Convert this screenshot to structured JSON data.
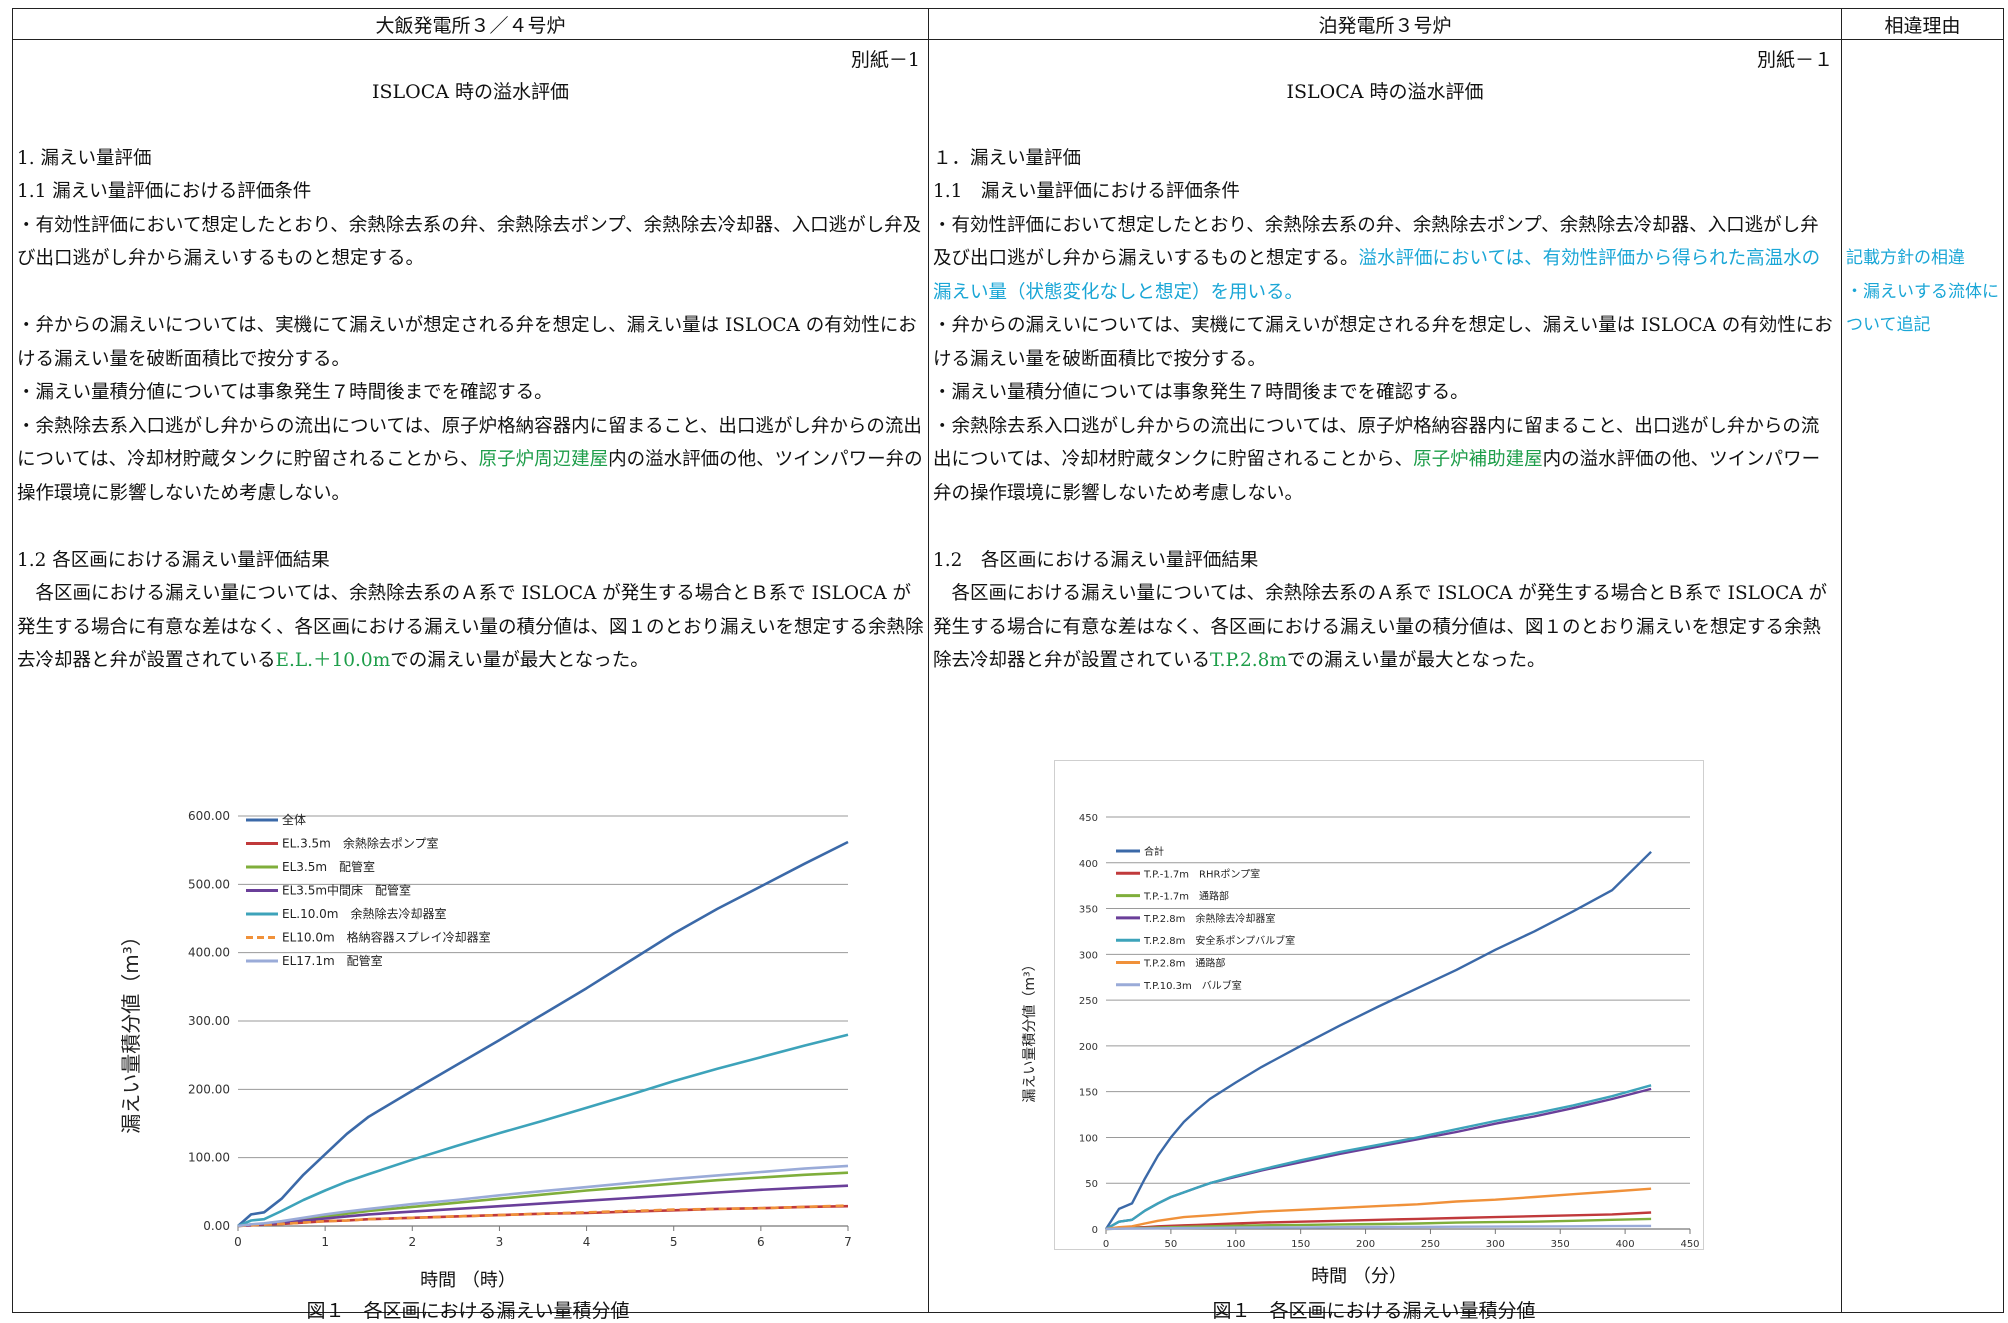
{
  "table": {
    "col_left": "大飯発電所３／４号炉",
    "col_right": "泊発電所３号炉",
    "col_reason": "相違理由"
  },
  "left": {
    "annex": "別紙－1",
    "title": "ISLOCA 時の溢水評価",
    "h1": "1. 漏えい量評価",
    "h11": "1.1 漏えい量評価における評価条件",
    "p1": "・有効性評価において想定したとおり、余熱除去系の弁、余熱除去ポンプ、余熱除去冷却器、入口逃がし弁及び出口逃がし弁から漏えいするものと想定する。",
    "p2": "・弁からの漏えいについては、実機にて漏えいが想定される弁を想定し、漏えい量は ISLOCA の有効性における漏えい量を破断面積比で按分する。",
    "p3": "・漏えい量積分値については事象発生７時間後までを確認する。",
    "p4_a": "・余熱除去系入口逃がし弁からの流出については、原子炉格納容器内に留まること、出口逃がし弁からの流出については、冷却材貯蔵タンクに貯留されることから、",
    "p4_green": "原子炉周辺建屋",
    "p4_b": "内の溢水評価の他、ツインパワー弁の操作環境に影響しないため考慮しない。",
    "h12": "1.2 各区画における漏えい量評価結果",
    "p5_a": "　各区画における漏えい量については、余熱除去系のＡ系で ISLOCA が発生する場合とＢ系で ISLOCA が発生する場合に有意な差はなく、各区画における漏えい量の積分値は、図１のとおり漏えいを想定する余熱除去冷却器と弁が設置されている",
    "p5_green": "E.L.＋10.0m",
    "p5_b": "での漏えい量が最大となった。",
    "fig_xlabel": "時間 （時）",
    "fig_caption": "図１　各区画における漏えい量積分値"
  },
  "right": {
    "annex": "別紙－１",
    "title": "ISLOCA 時の溢水評価",
    "h1": "１．漏えい量評価",
    "h11": "1.1　漏えい量評価における評価条件",
    "p1_a": "・有効性評価において想定したとおり、余熱除去系の弁、余熱除去ポンプ、余熱除去冷却器、入口逃がし弁及び出口逃がし弁から漏えいするものと想定する。",
    "p1_cyan": "溢水評価においては、有効性評価から得られた高温水の漏えい量（状態変化なしと想定）を用いる。",
    "p2": "・弁からの漏えいについては、実機にて漏えいが想定される弁を想定し、漏えい量は ISLOCA の有効性における漏えい量を破断面積比で按分する。",
    "p3": "・漏えい量積分値については事象発生７時間後までを確認する。",
    "p4_a": "・余熱除去系入口逃がし弁からの流出については、原子炉格納容器内に留まること、出口逃がし弁からの流出については、冷却材貯蔵タンクに貯留されることから、",
    "p4_green": "原子炉補助建屋",
    "p4_b": "内の溢水評価の他、ツインパワー弁の操作環境に影響しないため考慮しない。",
    "h12": "1.2　各区画における漏えい量評価結果",
    "p5_a": "　各区画における漏えい量については、余熱除去系のＡ系で ISLOCA が発生する場合とＢ系で ISLOCA が発生する場合に有意な差はなく、各区画における漏えい量の積分値は、図１のとおり漏えいを想定する余熱除去冷却器と弁が設置されている",
    "p5_green": "T.P.2.8m",
    "p5_b": "での漏えい量が最大となった。",
    "fig_xlabel": "時間 （分）",
    "fig_caption": "図１　各区画における漏えい量積分値"
  },
  "reason": {
    "note1": "記載方針の相違",
    "note2": "・漏えいする流体について追記"
  },
  "colors": {
    "green": "#1e9e4a",
    "cyan": "#1aa6d6"
  },
  "chart_data": [
    {
      "type": "line",
      "ylabel": "漏えい量積分値（m³）",
      "xlabel": "時間 （時）",
      "xlim": [
        0,
        7
      ],
      "ylim": [
        0,
        600
      ],
      "xticks": [
        "0",
        "1",
        "2",
        "3",
        "4",
        "5",
        "6",
        "7"
      ],
      "yticks": [
        "0.00",
        "100.00",
        "200.00",
        "300.00",
        "400.00",
        "500.00",
        "600.00"
      ],
      "legend_position": "top-left",
      "grid": true,
      "x": [
        0,
        0.15,
        0.3,
        0.5,
        0.75,
        1.0,
        1.25,
        1.5,
        2,
        2.5,
        3,
        3.5,
        4,
        4.5,
        5,
        5.5,
        6,
        6.5,
        7
      ],
      "series": [
        {
          "name": "全体",
          "color": "#3b69a8",
          "dash": "solid",
          "values": [
            0,
            17,
            20,
            40,
            75,
            105,
            135,
            160,
            198,
            235,
            272,
            310,
            348,
            388,
            428,
            464,
            497,
            530,
            562
          ]
        },
        {
          "name": "EL.3.5m　余熱除去ポンプ室",
          "color": "#c0393b",
          "dash": "solid",
          "values": [
            0,
            1,
            2,
            3,
            5,
            7,
            8,
            10,
            12,
            14,
            16,
            18,
            19,
            21,
            23,
            25,
            26,
            28,
            29
          ]
        },
        {
          "name": "EL3.5m　配管室",
          "color": "#7fae3b",
          "dash": "solid",
          "values": [
            0,
            2,
            3,
            6,
            10,
            14,
            18,
            22,
            28,
            34,
            40,
            46,
            52,
            57,
            62,
            67,
            71,
            75,
            78
          ]
        },
        {
          "name": "EL3.5m中間床　配管室",
          "color": "#6a3f99",
          "dash": "solid",
          "values": [
            0,
            1.5,
            3,
            5,
            8,
            11,
            14,
            17,
            21,
            25,
            29,
            33,
            37,
            41,
            45,
            49,
            53,
            56,
            59
          ]
        },
        {
          "name": "EL.10.0m　余熱除去冷却器室",
          "color": "#3da3ba",
          "dash": "solid",
          "values": [
            0,
            8,
            10,
            22,
            38,
            52,
            65,
            76,
            97,
            117,
            136,
            154,
            173,
            192,
            212,
            230,
            247,
            264,
            280
          ]
        },
        {
          "name": "EL10.0m　格納容器スプレイ冷却器室",
          "color": "#f0913a",
          "dash": "dashed",
          "values": [
            0,
            1,
            2,
            3,
            5,
            7,
            8,
            10,
            12,
            14,
            16,
            18,
            20,
            22,
            24,
            25,
            26,
            28,
            30
          ]
        },
        {
          "name": "EL17.1m　配管室",
          "color": "#9aabd8",
          "dash": "solid",
          "values": [
            0,
            2.5,
            4,
            7,
            12,
            17,
            21,
            25,
            32,
            38,
            45,
            51,
            57,
            63,
            69,
            74,
            79,
            84,
            88
          ]
        }
      ]
    },
    {
      "type": "line",
      "ylabel": "漏えい量積分値（m³）",
      "xlabel": "時間 （分）",
      "xlim": [
        0,
        450
      ],
      "ylim": [
        0,
        450
      ],
      "xticks": [
        "0",
        "50",
        "100",
        "150",
        "200",
        "250",
        "300",
        "350",
        "400",
        "450"
      ],
      "yticks": [
        "0",
        "50",
        "100",
        "150",
        "200",
        "250",
        "300",
        "350",
        "400",
        "450"
      ],
      "legend_position": "top-left",
      "grid": true,
      "x": [
        0,
        10,
        20,
        30,
        40,
        50,
        60,
        70,
        80,
        100,
        120,
        150,
        180,
        210,
        240,
        270,
        300,
        330,
        360,
        390,
        420
      ],
      "series": [
        {
          "name": "合計",
          "color": "#3b69a8",
          "dash": "solid",
          "values": [
            0,
            22,
            28,
            55,
            80,
            100,
            117,
            130,
            142,
            160,
            177,
            200,
            222,
            243,
            263,
            283,
            305,
            325,
            347,
            370,
            412
          ]
        },
        {
          "name": "T.P.-1.7m　RHRポンプ室",
          "color": "#c0393b",
          "dash": "solid",
          "values": [
            0,
            1,
            1.5,
            2,
            3,
            3.5,
            4,
            4.5,
            5,
            6,
            7,
            8,
            9,
            10,
            11,
            12,
            13,
            14,
            15,
            16,
            18
          ]
        },
        {
          "name": "T.P.-1.7m　通路部",
          "color": "#7fae3b",
          "dash": "solid",
          "values": [
            0,
            0.5,
            1,
            1.2,
            1.5,
            2,
            2.3,
            2.6,
            3,
            3.5,
            4,
            4.5,
            5,
            5.5,
            6,
            7,
            7.5,
            8,
            9,
            10,
            11
          ]
        },
        {
          "name": "T.P.2.8m　余熱除去冷却器室",
          "color": "#6a3f99",
          "dash": "solid",
          "values": [
            0,
            8,
            10,
            20,
            28,
            35,
            40,
            45,
            50,
            57,
            64,
            73,
            82,
            90,
            98,
            106,
            115,
            123,
            132,
            142,
            153
          ]
        },
        {
          "name": "T.P.2.8m　安全系ポンプバルブ室",
          "color": "#3da3ba",
          "dash": "solid",
          "values": [
            0,
            8,
            10,
            20,
            28,
            35,
            40,
            45,
            50,
            58,
            65,
            75,
            84,
            92,
            100,
            109,
            118,
            126,
            135,
            145,
            157
          ]
        },
        {
          "name": "T.P.2.8m　通路部",
          "color": "#f0913a",
          "dash": "solid",
          "values": [
            0,
            2,
            3,
            6,
            9,
            11,
            13,
            14,
            15,
            17,
            19,
            21,
            23,
            25,
            27,
            30,
            32,
            35,
            38,
            41,
            44
          ]
        },
        {
          "name": "T.P.10.3m　バルブ室",
          "color": "#9aabd8",
          "dash": "solid",
          "values": [
            0,
            0.3,
            0.5,
            0.7,
            0.8,
            1,
            1.1,
            1.2,
            1.3,
            1.5,
            1.6,
            1.8,
            2,
            2.2,
            2.3,
            2.5,
            2.6,
            2.8,
            3,
            3.2,
            3.4
          ]
        }
      ]
    }
  ]
}
